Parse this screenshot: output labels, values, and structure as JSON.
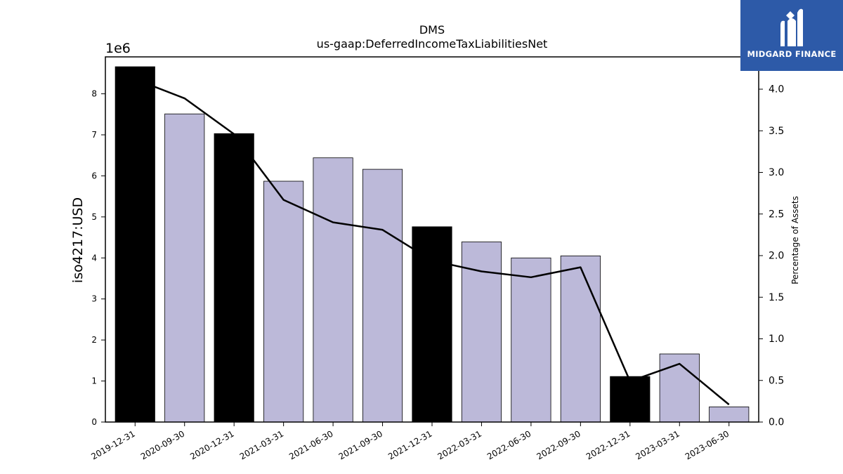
{
  "chart_data": {
    "type": "bar",
    "title": "DMS",
    "subtitle": "us-gaap:DeferredIncomeTaxLiabilitiesNet",
    "ylabel": "iso4217:USD",
    "y_multiplier": "1e6",
    "y2label": "Percentage of Assets",
    "categories": [
      "2019-12-31",
      "2020-09-30",
      "2020-12-31",
      "2021-03-31",
      "2021-06-30",
      "2021-09-30",
      "2021-12-31",
      "2022-03-31",
      "2022-06-30",
      "2022-09-30",
      "2022-12-31",
      "2023-03-31",
      "2023-06-30"
    ],
    "series": [
      {
        "type": "bar",
        "values": [
          8660000,
          7510000,
          7030000,
          5870000,
          6440000,
          6160000,
          4760000,
          4390000,
          4000000,
          4050000,
          1110000,
          1660000,
          370000
        ],
        "colors": [
          "#000000",
          "#bcb9d9",
          "#000000",
          "#bcb9d9",
          "#bcb9d9",
          "#bcb9d9",
          "#000000",
          "#bcb9d9",
          "#bcb9d9",
          "#bcb9d9",
          "#000000",
          "#bcb9d9",
          "#bcb9d9"
        ]
      },
      {
        "type": "line",
        "axis": "right",
        "color": "#000000",
        "values": [
          4.12,
          3.89,
          3.46,
          2.67,
          2.4,
          2.31,
          1.94,
          1.81,
          1.74,
          1.86,
          0.49,
          0.7,
          0.21
        ]
      }
    ],
    "ylim": [
      0,
      8900000
    ],
    "yticks": [
      0,
      1,
      2,
      3,
      4,
      5,
      6,
      7,
      8
    ],
    "y2lim": [
      0,
      4.0
    ],
    "y2ticks": [
      "0.0",
      "0.5",
      "1.0",
      "1.5",
      "2.0",
      "2.5",
      "3.0",
      "3.5",
      "4.0"
    ],
    "grid": false
  },
  "logo": {
    "text": "MIDGARD FINANCE",
    "background": "#2d5aa8"
  }
}
